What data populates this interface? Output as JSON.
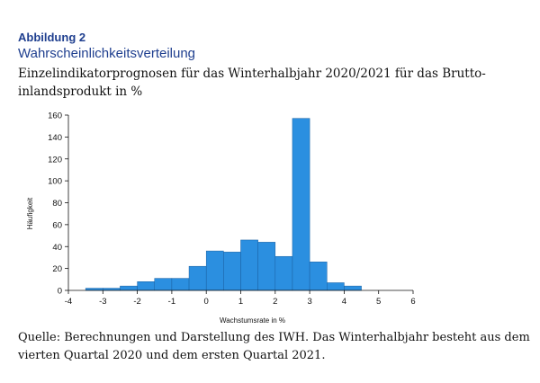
{
  "figure": {
    "label": "Abbildung 2",
    "subtitle": "Wahrscheinlichkeitsverteilung",
    "title": "Einzelindikatorprognosen für das Winterhalbjahr 2020/2021 für das Brutto-inlandsprodukt in %",
    "source": "Quelle: Berechnungen und Darstellung des IWH. Das Winterhalbjahr besteht aus dem vierten Quartal 2020 und dem ersten Quartal 2021."
  },
  "chart_data": {
    "type": "bar",
    "title": "Einzelindikatorprognosen für das Winterhalbjahr 2020/2021 für das Brutto-inlandsprodukt in %",
    "xlabel": "Wachstumsrate in %",
    "ylabel": "Häufigkeit",
    "xlim": [
      -4,
      6
    ],
    "ylim": [
      0,
      160
    ],
    "x_ticks": [
      -4,
      -3,
      -2,
      -1,
      0,
      1,
      2,
      3,
      4,
      5,
      6
    ],
    "y_ticks": [
      0,
      20,
      40,
      60,
      80,
      100,
      120,
      140,
      160
    ],
    "bin_width": 0.5,
    "bin_starts": [
      -3.5,
      -3.0,
      -2.5,
      -2.0,
      -1.5,
      -1.0,
      -0.5,
      0.0,
      0.5,
      1.0,
      1.5,
      2.0,
      2.5,
      3.0,
      3.5,
      4.0
    ],
    "values": [
      2,
      2,
      4,
      8,
      11,
      11,
      22,
      36,
      35,
      46,
      44,
      31,
      157,
      26,
      7,
      4
    ],
    "bar_color": "#2b8fe0",
    "grid": false
  }
}
